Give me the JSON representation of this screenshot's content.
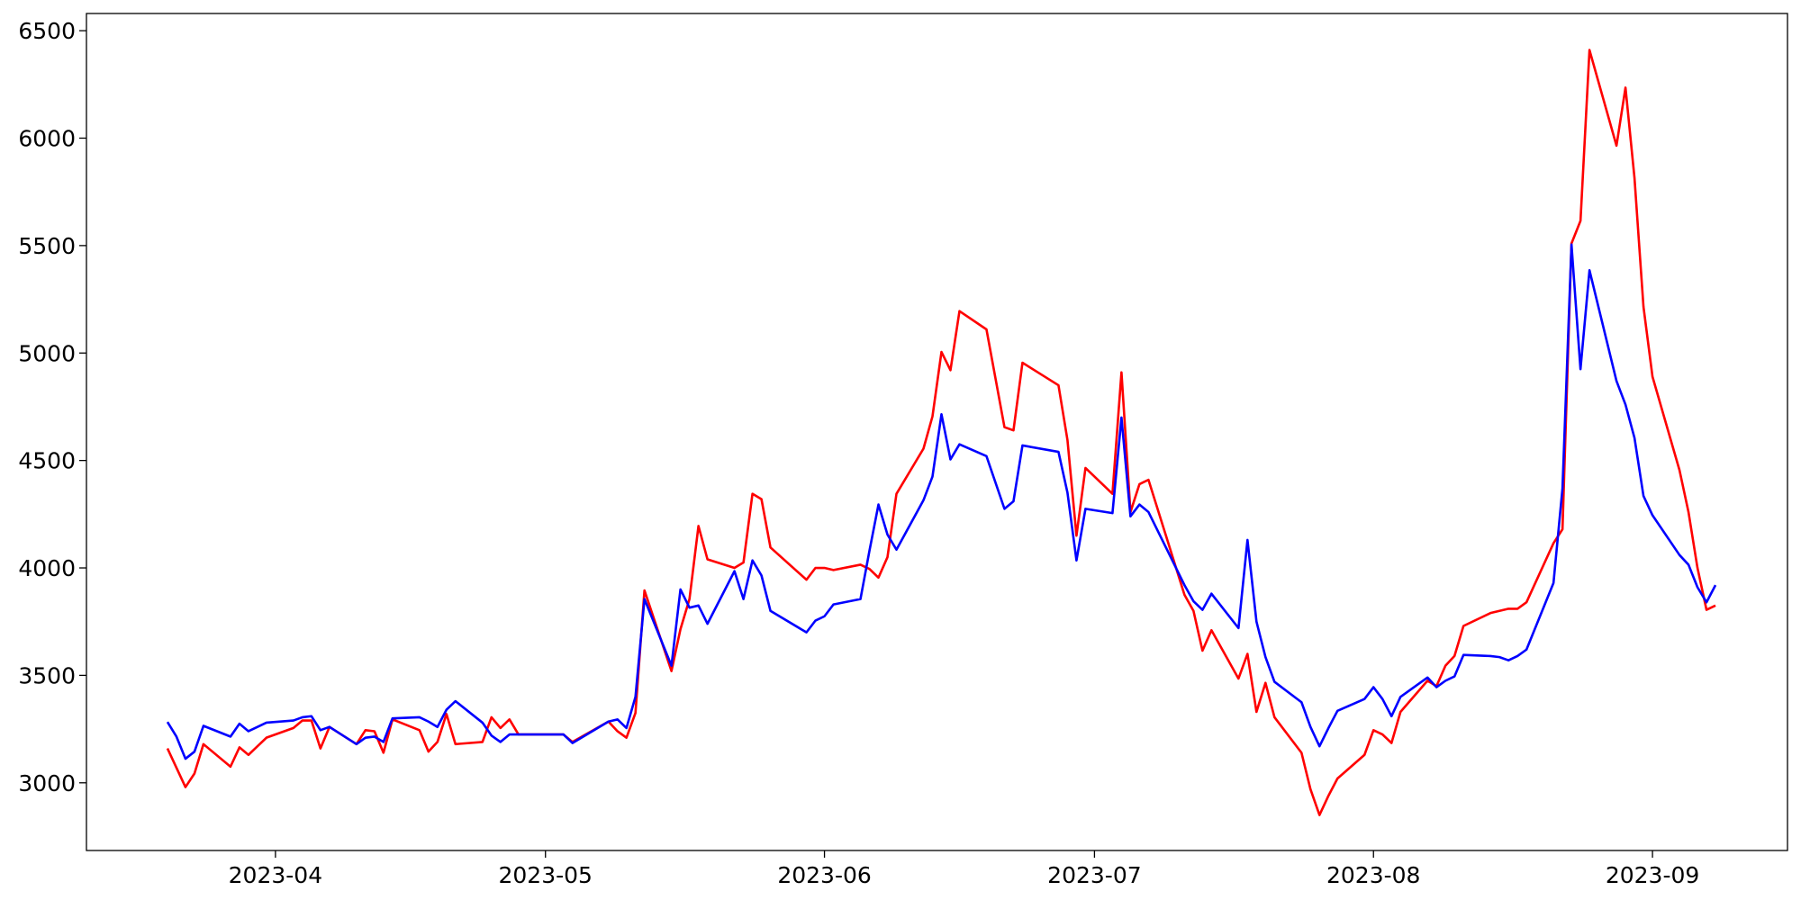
{
  "chart_data": {
    "type": "line",
    "x": [
      "2023-03-20",
      "2023-03-21",
      "2023-03-22",
      "2023-03-23",
      "2023-03-24",
      "2023-03-27",
      "2023-03-28",
      "2023-03-29",
      "2023-03-30",
      "2023-03-31",
      "2023-04-03",
      "2023-04-04",
      "2023-04-05",
      "2023-04-06",
      "2023-04-07",
      "2023-04-10",
      "2023-04-11",
      "2023-04-12",
      "2023-04-13",
      "2023-04-14",
      "2023-04-17",
      "2023-04-18",
      "2023-04-19",
      "2023-04-20",
      "2023-04-21",
      "2023-04-24",
      "2023-04-25",
      "2023-04-26",
      "2023-04-27",
      "2023-04-28",
      "2023-05-01",
      "2023-05-03",
      "2023-05-04",
      "2023-05-08",
      "2023-05-09",
      "2023-05-10",
      "2023-05-11",
      "2023-05-12",
      "2023-05-15",
      "2023-05-16",
      "2023-05-17",
      "2023-05-18",
      "2023-05-19",
      "2023-05-22",
      "2023-05-23",
      "2023-05-24",
      "2023-05-25",
      "2023-05-26",
      "2023-05-30",
      "2023-05-31",
      "2023-06-01",
      "2023-06-02",
      "2023-06-05",
      "2023-06-06",
      "2023-06-07",
      "2023-06-08",
      "2023-06-09",
      "2023-06-12",
      "2023-06-13",
      "2023-06-14",
      "2023-06-15",
      "2023-06-16",
      "2023-06-19",
      "2023-06-21",
      "2023-06-22",
      "2023-06-23",
      "2023-06-27",
      "2023-06-28",
      "2023-06-29",
      "2023-06-30",
      "2023-07-03",
      "2023-07-04",
      "2023-07-05",
      "2023-07-06",
      "2023-07-07",
      "2023-07-11",
      "2023-07-12",
      "2023-07-13",
      "2023-07-14",
      "2023-07-17",
      "2023-07-18",
      "2023-07-19",
      "2023-07-20",
      "2023-07-21",
      "2023-07-24",
      "2023-07-25",
      "2023-07-26",
      "2023-07-27",
      "2023-07-28",
      "2023-07-31",
      "2023-08-01",
      "2023-08-02",
      "2023-08-03",
      "2023-08-04",
      "2023-08-07",
      "2023-08-08",
      "2023-08-09",
      "2023-08-10",
      "2023-08-11",
      "2023-08-14",
      "2023-08-15",
      "2023-08-16",
      "2023-08-17",
      "2023-08-18",
      "2023-08-21",
      "2023-08-22",
      "2023-08-23",
      "2023-08-24",
      "2023-08-25",
      "2023-08-28",
      "2023-08-29",
      "2023-08-30",
      "2023-08-31",
      "2023-09-01",
      "2023-09-04",
      "2023-09-05",
      "2023-09-06",
      "2023-09-07",
      "2023-09-08"
    ],
    "series": [
      {
        "color": "#ff0000",
        "values": [
          3160,
          3070,
          2980,
          3043,
          3180,
          3075,
          3165,
          3130,
          3170,
          3210,
          3255,
          3290,
          3290,
          3160,
          3260,
          3180,
          3245,
          3240,
          3140,
          3295,
          3245,
          3145,
          3190,
          3320,
          3180,
          3190,
          3305,
          3255,
          3295,
          3225,
          3225,
          3225,
          3190,
          3285,
          3240,
          3210,
          3325,
          3895,
          3520,
          3715,
          3855,
          4195,
          4040,
          4000,
          4025,
          4345,
          4320,
          4095,
          3945,
          4000,
          4000,
          3990,
          4015,
          3995,
          3955,
          4050,
          4345,
          4555,
          4705,
          5005,
          4920,
          5195,
          5110,
          4655,
          4640,
          4955,
          4850,
          4595,
          4150,
          4465,
          4345,
          4910,
          4260,
          4390,
          4410,
          3875,
          3800,
          3615,
          3710,
          3485,
          3600,
          3330,
          3465,
          3305,
          3140,
          2970,
          2850,
          2940,
          3020,
          3130,
          3245,
          3225,
          3185,
          3330,
          3475,
          3450,
          3545,
          3590,
          3730,
          3790,
          3800,
          3810,
          3810,
          3840,
          4115,
          4180,
          5510,
          5615,
          6410,
          5965,
          6235,
          5815,
          5215,
          4890,
          4455,
          4260,
          4000,
          3805,
          3825
        ]
      },
      {
        "color": "#0000ff",
        "values": [
          3283,
          3215,
          3112,
          3145,
          3265,
          3215,
          3275,
          3240,
          3260,
          3280,
          3290,
          3305,
          3310,
          3245,
          3260,
          3180,
          3210,
          3215,
          3190,
          3300,
          3305,
          3285,
          3260,
          3340,
          3380,
          3280,
          3220,
          3190,
          3225,
          3225,
          3225,
          3225,
          3185,
          3285,
          3295,
          3255,
          3400,
          3855,
          3545,
          3900,
          3815,
          3825,
          3740,
          3985,
          3855,
          4035,
          3965,
          3800,
          3700,
          3755,
          3775,
          3830,
          3855,
          4080,
          4295,
          4155,
          4085,
          4315,
          4425,
          4715,
          4505,
          4575,
          4520,
          4275,
          4310,
          4570,
          4540,
          4350,
          4035,
          4275,
          4255,
          4700,
          4240,
          4295,
          4260,
          3920,
          3845,
          3805,
          3880,
          3720,
          4130,
          3750,
          3585,
          3470,
          3375,
          3260,
          3170,
          3255,
          3335,
          3390,
          3445,
          3390,
          3310,
          3400,
          3490,
          3445,
          3475,
          3495,
          3595,
          3590,
          3585,
          3570,
          3590,
          3620,
          3930,
          4370,
          5505,
          4925,
          5385,
          4870,
          4760,
          4605,
          4335,
          4245,
          4060,
          4015,
          3910,
          3840,
          3920
        ]
      }
    ],
    "xlim": [
      "2023-03-11",
      "2023-09-16"
    ],
    "xticks": [
      {
        "value": "2023-04-01",
        "label": "2023-04"
      },
      {
        "value": "2023-05-01",
        "label": "2023-05"
      },
      {
        "value": "2023-06-01",
        "label": "2023-06"
      },
      {
        "value": "2023-07-01",
        "label": "2023-07"
      },
      {
        "value": "2023-08-01",
        "label": "2023-08"
      },
      {
        "value": "2023-09-01",
        "label": "2023-09"
      }
    ],
    "ylim": [
      2685,
      6580
    ],
    "yticks": [
      3000,
      3500,
      4000,
      4500,
      5000,
      5500,
      6000,
      6500
    ]
  }
}
